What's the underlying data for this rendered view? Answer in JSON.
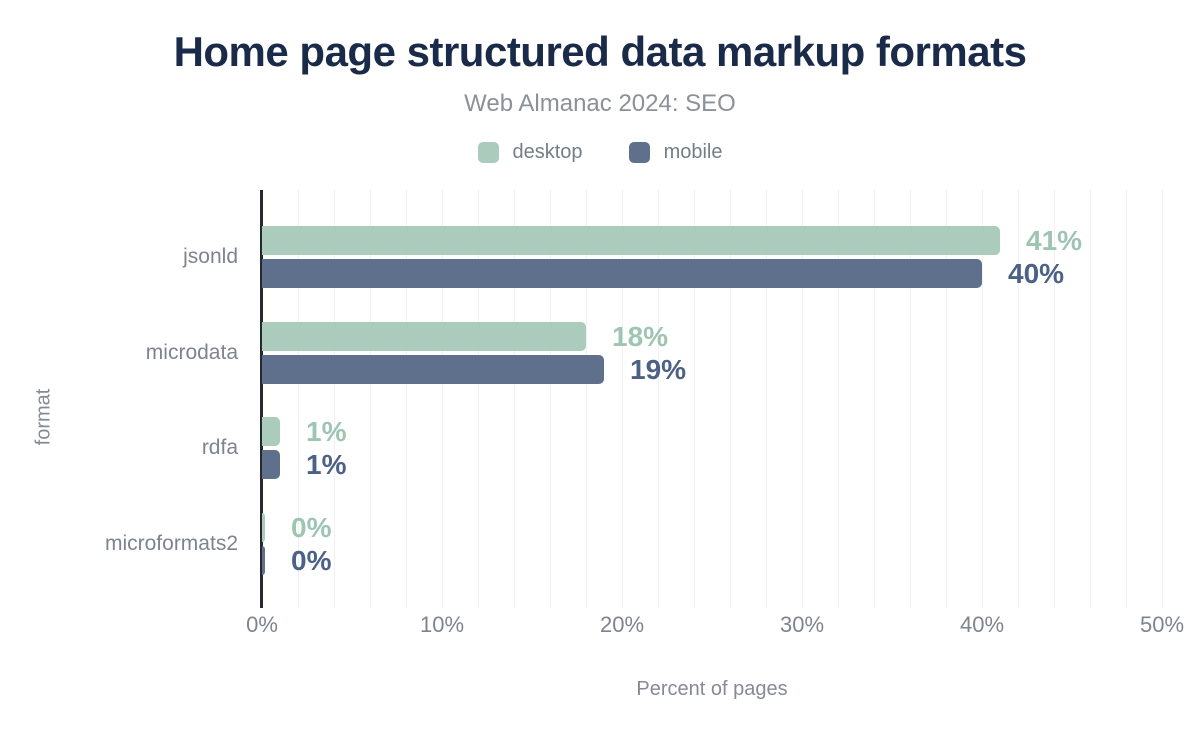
{
  "chart_data": {
    "type": "bar",
    "orientation": "horizontal",
    "title": "Home page structured data markup formats",
    "subtitle": "Web Almanac 2024: SEO",
    "xlabel": "Percent of pages",
    "ylabel": "format",
    "categories": [
      "jsonld",
      "microdata",
      "rdfa",
      "microformats2"
    ],
    "series": [
      {
        "name": "desktop",
        "color": "#abcbbc",
        "label_color": "#9ec5b2",
        "values": [
          41,
          18,
          1,
          0
        ],
        "value_labels": [
          "41%",
          "18%",
          "1%",
          "0%"
        ]
      },
      {
        "name": "mobile",
        "color": "#5e708b",
        "label_color": "#4c6186",
        "values": [
          40,
          19,
          1,
          0
        ],
        "value_labels": [
          "40%",
          "19%",
          "1%",
          "0%"
        ]
      }
    ],
    "xlim": [
      0,
      50
    ],
    "x_ticks": [
      0,
      10,
      20,
      30,
      40,
      50
    ],
    "x_tick_labels": [
      "0%",
      "10%",
      "20%",
      "30%",
      "40%",
      "50%"
    ],
    "minor_grid_step_percent": 2,
    "grid": true,
    "legend_position": "top",
    "colors": {
      "title": "#1a2a49",
      "axis_line": "#26282e",
      "gridline": "#f1f1f4",
      "label_gray": "#7d848d"
    }
  }
}
